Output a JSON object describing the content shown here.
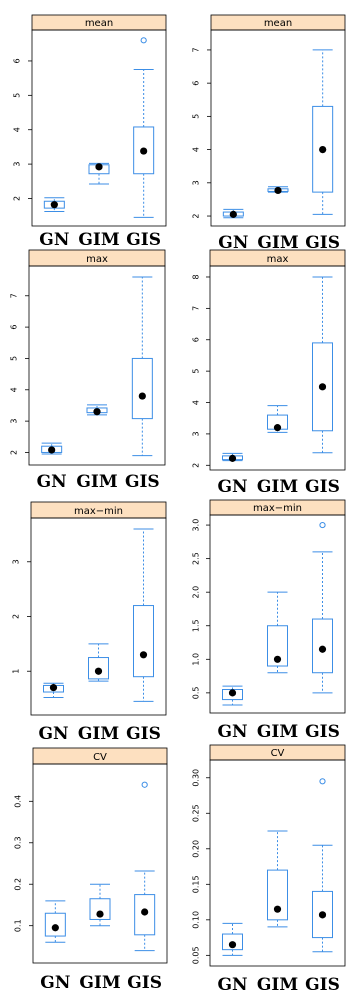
{
  "style": {
    "strip_color": "#fde0c0",
    "box_color": "#3c8ee6",
    "median_dot_color": "#000000",
    "frame_color": "#000000",
    "background": "#ffffff"
  },
  "chart_data": [
    {
      "type": "box",
      "title": "mean",
      "categories": [
        "GN",
        "GIM",
        "GIS"
      ],
      "ylim": [
        1.2,
        6.9
      ],
      "yticks": [
        2,
        3,
        4,
        5,
        6
      ],
      "boxes": [
        {
          "category": "GN",
          "whisker_low": 1.62,
          "q1": 1.72,
          "median": 1.82,
          "q3": 1.92,
          "whisker_high": 2.02,
          "outliers": []
        },
        {
          "category": "GIM",
          "whisker_low": 2.42,
          "q1": 2.72,
          "median": 2.92,
          "q3": 2.98,
          "whisker_high": 3.02,
          "outliers": []
        },
        {
          "category": "GIS",
          "whisker_low": 1.45,
          "q1": 2.72,
          "median": 3.38,
          "q3": 4.08,
          "whisker_high": 5.75,
          "outliers": [
            6.6
          ]
        }
      ]
    },
    {
      "type": "box",
      "title": "mean",
      "categories": [
        "GN",
        "GIM",
        "GIS"
      ],
      "ylim": [
        1.7,
        7.6
      ],
      "yticks": [
        2,
        3,
        4,
        5,
        6,
        7
      ],
      "boxes": [
        {
          "category": "GN",
          "whisker_low": 1.95,
          "q1": 2.0,
          "median": 2.05,
          "q3": 2.12,
          "whisker_high": 2.2,
          "outliers": []
        },
        {
          "category": "GIM",
          "whisker_low": 2.72,
          "q1": 2.74,
          "median": 2.77,
          "q3": 2.82,
          "whisker_high": 2.88,
          "outliers": []
        },
        {
          "category": "GIS",
          "whisker_low": 2.05,
          "q1": 2.72,
          "median": 4.0,
          "q3": 5.3,
          "whisker_high": 7.0,
          "outliers": []
        }
      ]
    },
    {
      "type": "box",
      "title": "max",
      "categories": [
        "GN",
        "GIM",
        "GIS"
      ],
      "ylim": [
        1.6,
        7.95
      ],
      "yticks": [
        2,
        3,
        4,
        5,
        6,
        7
      ],
      "boxes": [
        {
          "category": "GN",
          "whisker_low": 1.95,
          "q1": 2.0,
          "median": 2.08,
          "q3": 2.2,
          "whisker_high": 2.3,
          "outliers": []
        },
        {
          "category": "GIM",
          "whisker_low": 3.2,
          "q1": 3.27,
          "median": 3.3,
          "q3": 3.42,
          "whisker_high": 3.52,
          "outliers": []
        },
        {
          "category": "GIS",
          "whisker_low": 1.9,
          "q1": 3.08,
          "median": 3.8,
          "q3": 5.0,
          "whisker_high": 7.6,
          "outliers": []
        }
      ]
    },
    {
      "type": "box",
      "title": "max",
      "categories": [
        "GN",
        "GIM",
        "GIS"
      ],
      "ylim": [
        1.85,
        8.35
      ],
      "yticks": [
        2,
        3,
        4,
        5,
        6,
        7,
        8
      ],
      "boxes": [
        {
          "category": "GN",
          "whisker_low": 2.15,
          "q1": 2.18,
          "median": 2.22,
          "q3": 2.3,
          "whisker_high": 2.38,
          "outliers": []
        },
        {
          "category": "GIM",
          "whisker_low": 3.05,
          "q1": 3.15,
          "median": 3.2,
          "q3": 3.6,
          "whisker_high": 3.9,
          "outliers": []
        },
        {
          "category": "GIS",
          "whisker_low": 2.4,
          "q1": 3.1,
          "median": 4.5,
          "q3": 5.9,
          "whisker_high": 8.0,
          "outliers": []
        }
      ]
    },
    {
      "type": "box",
      "title": "max−min",
      "categories": [
        "GN",
        "GIM",
        "GIS"
      ],
      "ylim": [
        0.2,
        3.8
      ],
      "yticks": [
        1,
        2,
        3
      ],
      "boxes": [
        {
          "category": "GN",
          "whisker_low": 0.52,
          "q1": 0.62,
          "median": 0.7,
          "q3": 0.74,
          "whisker_high": 0.78,
          "outliers": []
        },
        {
          "category": "GIM",
          "whisker_low": 0.82,
          "q1": 0.86,
          "median": 1.0,
          "q3": 1.25,
          "whisker_high": 1.5,
          "outliers": []
        },
        {
          "category": "GIS",
          "whisker_low": 0.45,
          "q1": 0.9,
          "median": 1.3,
          "q3": 2.2,
          "whisker_high": 3.6,
          "outliers": []
        }
      ]
    },
    {
      "type": "box",
      "title": "max−min",
      "categories": [
        "GN",
        "GIM",
        "GIS"
      ],
      "ylim": [
        0.2,
        3.15
      ],
      "yticks": [
        0.5,
        1.0,
        1.5,
        2.0,
        2.5,
        3.0
      ],
      "ytick_labels": [
        "0.5",
        "1.0",
        "1.5",
        "2.0",
        "2.5",
        "3.0"
      ],
      "boxes": [
        {
          "category": "GN",
          "whisker_low": 0.32,
          "q1": 0.4,
          "median": 0.5,
          "q3": 0.55,
          "whisker_high": 0.6,
          "outliers": []
        },
        {
          "category": "GIM",
          "whisker_low": 0.8,
          "q1": 0.9,
          "median": 1.0,
          "q3": 1.5,
          "whisker_high": 2.0,
          "outliers": []
        },
        {
          "category": "GIS",
          "whisker_low": 0.5,
          "q1": 0.8,
          "median": 1.15,
          "q3": 1.6,
          "whisker_high": 2.6,
          "outliers": [
            3.0
          ]
        }
      ]
    },
    {
      "type": "box",
      "title": "CV",
      "categories": [
        "GN",
        "GIM",
        "GIS"
      ],
      "ylim": [
        0.01,
        0.49
      ],
      "yticks": [
        0.1,
        0.2,
        0.3,
        0.4
      ],
      "ytick_labels": [
        "0.1",
        "0.2",
        "0.3",
        "0.4"
      ],
      "boxes": [
        {
          "category": "GN",
          "whisker_low": 0.06,
          "q1": 0.075,
          "median": 0.095,
          "q3": 0.13,
          "whisker_high": 0.16,
          "outliers": []
        },
        {
          "category": "GIM",
          "whisker_low": 0.1,
          "q1": 0.115,
          "median": 0.128,
          "q3": 0.165,
          "whisker_high": 0.2,
          "outliers": []
        },
        {
          "category": "GIS",
          "whisker_low": 0.04,
          "q1": 0.078,
          "median": 0.133,
          "q3": 0.175,
          "whisker_high": 0.232,
          "outliers": [
            0.44
          ]
        }
      ]
    },
    {
      "type": "box",
      "title": "CV",
      "categories": [
        "GN",
        "GIM",
        "GIS"
      ],
      "ylim": [
        0.035,
        0.325
      ],
      "yticks": [
        0.05,
        0.1,
        0.15,
        0.2,
        0.25,
        0.3
      ],
      "ytick_labels": [
        "0.05",
        "0.10",
        "0.15",
        "0.20",
        "0.25",
        "0.30"
      ],
      "boxes": [
        {
          "category": "GN",
          "whisker_low": 0.05,
          "q1": 0.058,
          "median": 0.065,
          "q3": 0.08,
          "whisker_high": 0.095,
          "outliers": []
        },
        {
          "category": "GIM",
          "whisker_low": 0.09,
          "q1": 0.1,
          "median": 0.115,
          "q3": 0.17,
          "whisker_high": 0.225,
          "outliers": []
        },
        {
          "category": "GIS",
          "whisker_low": 0.055,
          "q1": 0.075,
          "median": 0.107,
          "q3": 0.14,
          "whisker_high": 0.205,
          "outliers": [
            0.295
          ]
        }
      ]
    }
  ]
}
